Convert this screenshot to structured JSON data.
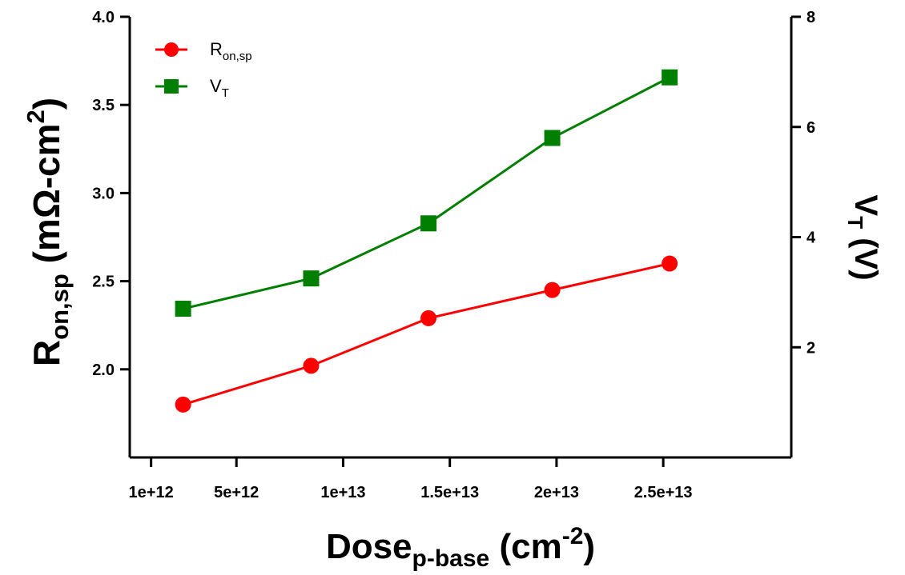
{
  "chart_data": {
    "type": "line",
    "x": [
      2500000000000,
      8500000000000,
      14000000000000,
      19800000000000,
      25300000000000
    ],
    "xlim": [
      0,
      31000000000000
    ],
    "xticks": [
      1000000000000,
      5000000000000,
      10000000000000,
      15000000000000,
      20000000000000,
      25000000000000
    ],
    "xtick_labels": [
      "1e+12",
      "5e+12",
      "1e+13",
      "1.5e+13",
      "2e+13",
      "2.5e+13"
    ],
    "xlabel": {
      "main": "Dose",
      "sub": "p-base",
      "tail": " (cm",
      "sup": "-2",
      "end": ")"
    },
    "y_left": {
      "lim": [
        1.5,
        4.0
      ],
      "ticks": [
        2.0,
        2.5,
        3.0,
        3.5,
        4.0
      ],
      "tick_labels": [
        "2.0",
        "2.5",
        "3.0",
        "3.5",
        "4.0"
      ],
      "label": {
        "main": "R",
        "sub": "on,sp",
        "tail": " (mΩ-cm",
        "sup": "2",
        "end": ")"
      }
    },
    "y_right": {
      "lim": [
        0,
        8
      ],
      "ticks": [
        2,
        4,
        6,
        8
      ],
      "tick_labels": [
        "2",
        "4",
        "6",
        "8"
      ],
      "label": {
        "main": "V",
        "sub": "T",
        "tail": " (V)"
      }
    },
    "series": [
      {
        "name": "R_on,sp",
        "legend_main": "R",
        "legend_sub": "on,sp",
        "axis": "left",
        "color": "#ff0000",
        "marker": "circle",
        "values": [
          1.8,
          2.02,
          2.29,
          2.45,
          2.6
        ]
      },
      {
        "name": "V_T",
        "legend_main": "V",
        "legend_sub": "T",
        "axis": "right",
        "color": "#007f00",
        "marker": "square",
        "values": [
          2.7,
          3.25,
          4.25,
          5.8,
          6.9
        ]
      }
    ],
    "legend_position": "top-left",
    "grid": false
  }
}
